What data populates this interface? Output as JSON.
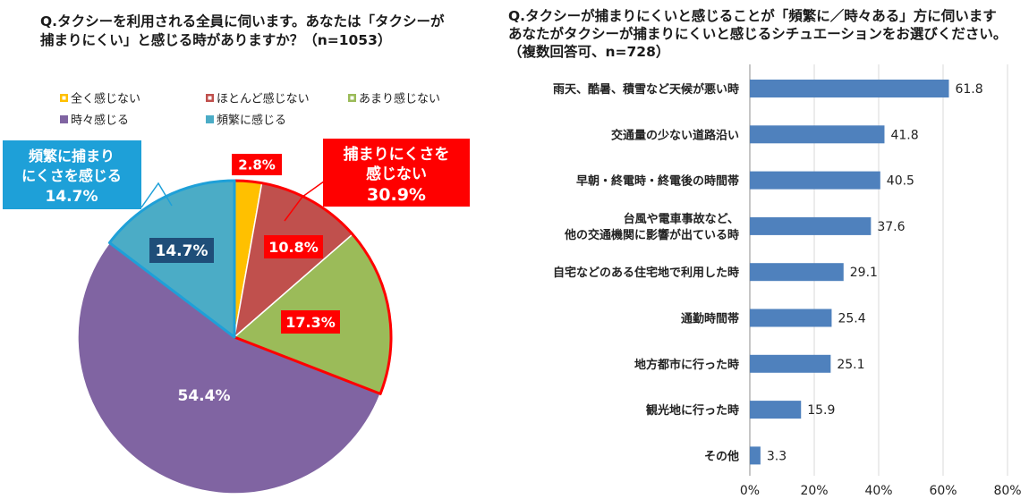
{
  "chart_data": [
    {
      "type": "pie",
      "title_lines": [
        "Q.タクシーを利用される全員に伺います。あなたは「タクシーが",
        "捕まりにくい」と感じる時がありますか？（n=1053）"
      ],
      "legend": [
        {
          "label": "全く感じない",
          "color": "#ffc000"
        },
        {
          "label": "ほとんど感じない",
          "color": "#c0504d"
        },
        {
          "label": "あまり感じない",
          "color": "#9bbb59"
        },
        {
          "label": "時々感じる",
          "color": "#8064a2"
        },
        {
          "label": "頻繁に感じる",
          "color": "#4bacc6"
        }
      ],
      "slices": [
        {
          "name": "全く感じない",
          "value": 2.8,
          "label": "2.8%",
          "color": "#ffc000"
        },
        {
          "name": "ほとんど感じない",
          "value": 10.8,
          "label": "10.8%",
          "color": "#c0504d"
        },
        {
          "name": "あまり感じない",
          "value": 17.3,
          "label": "17.3%",
          "color": "#9bbb59"
        },
        {
          "name": "時々感じる",
          "value": 54.4,
          "label": "54.4%",
          "color": "#8064a2"
        },
        {
          "name": "頻繁に感じる",
          "value": 14.7,
          "label": "14.7%",
          "color": "#4bacc6"
        }
      ],
      "callouts": [
        {
          "name": "not-caught-callout",
          "lines": [
            "捕まりにくさを",
            "感じない"
          ],
          "value": "30.9%",
          "color": "#ff0000"
        },
        {
          "name": "frequent-callout",
          "lines": [
            "頻繁に捕まり",
            "にくさを感じる"
          ],
          "value": "14.7%",
          "color": "#1ea0d8"
        }
      ]
    },
    {
      "type": "bar",
      "orientation": "horizontal",
      "title_lines": [
        "Q.タクシーが捕まりにくいと感じることが「頻繁に／時々ある」方に伺います",
        "あなたがタクシーが捕まりにくいと感じるシチュエーションをお選びください。",
        "（複数回答可、n=728）"
      ],
      "categories": [
        [
          "雨天、酷暑、積雪など天候が悪い時"
        ],
        [
          "交通量の少ない道路沿い"
        ],
        [
          "早朝・終電時・終電後の時間帯"
        ],
        [
          "台風や電車事故など、",
          "他の交通機関に影響が出ている時"
        ],
        [
          "自宅などのある住宅地で利用した時"
        ],
        [
          "通勤時間帯"
        ],
        [
          "地方都市に行った時"
        ],
        [
          "観光地に行った時"
        ],
        [
          "その他"
        ]
      ],
      "values": [
        61.8,
        41.8,
        40.5,
        37.6,
        29.1,
        25.4,
        25.1,
        15.9,
        3.3
      ],
      "value_labels": [
        "61.8",
        "41.8",
        "40.5",
        "37.6",
        "29.1",
        "25.4",
        "25.1",
        "15.9",
        "3.3"
      ],
      "xlim": [
        0,
        80
      ],
      "xticks": [
        0,
        20,
        40,
        60,
        80
      ],
      "xtick_labels": [
        "0%",
        "20%",
        "40%",
        "60%",
        "80%"
      ],
      "bar_color": "#4f81bd",
      "grid": true
    }
  ]
}
